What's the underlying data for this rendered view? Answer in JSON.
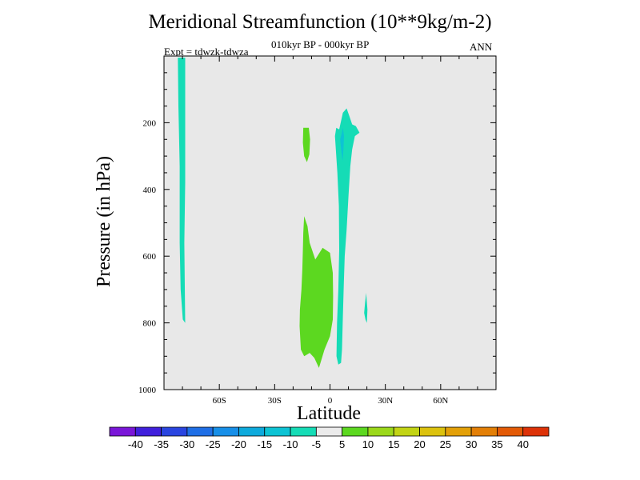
{
  "chart_data": {
    "type": "contour",
    "title": "Meridional Streamfunction (10**9kg/m-2)",
    "subtitle": "010kyr BP - 000kyr BP",
    "left_label": "Expt = tdwzk-tdwza",
    "right_label": "ANN",
    "xlabel": "Latitude",
    "ylabel": "Pressure (in hPa)",
    "xlim": [
      -90,
      90
    ],
    "ylim": [
      1000,
      0
    ],
    "x_ticks": [
      {
        "value": -60,
        "label": "60S"
      },
      {
        "value": -30,
        "label": "30S"
      },
      {
        "value": 0,
        "label": "0"
      },
      {
        "value": 30,
        "label": "30N"
      },
      {
        "value": 60,
        "label": "60N"
      }
    ],
    "y_ticks": [
      {
        "value": 200,
        "label": "200"
      },
      {
        "value": 400,
        "label": "400"
      },
      {
        "value": 600,
        "label": "600"
      },
      {
        "value": 800,
        "label": "800"
      },
      {
        "value": 1000,
        "label": "1000"
      }
    ],
    "background_color": "#e8e8e8",
    "colorbar": {
      "levels": [
        -40,
        -35,
        -30,
        -25,
        -20,
        -15,
        -10,
        -5,
        5,
        10,
        15,
        20,
        25,
        30,
        35,
        40
      ],
      "level_labels": [
        "-40",
        "-35",
        "-30",
        "-25",
        "-20",
        "-15",
        "-10",
        "-5",
        "5",
        "10",
        "15",
        "20",
        "25",
        "30",
        "35",
        "40"
      ],
      "colors": [
        "#7a16d8",
        "#4020dc",
        "#2a45e0",
        "#1f6fe6",
        "#178fe8",
        "#0eaadc",
        "#0dc3d4",
        "#15dcb6",
        "#ebebeb",
        "#5cd820",
        "#9bd81a",
        "#c2d414",
        "#dcc20e",
        "#e3a008",
        "#e37f06",
        "#e35a06",
        "#dd3208"
      ]
    },
    "regions": [
      {
        "name": "southern-high-latitude-band",
        "range": "-10 to -5",
        "color": "#15dcb6",
        "outline": [
          [
            -82.5,
            5
          ],
          [
            -78.5,
            5
          ],
          [
            -78.5,
            170
          ],
          [
            -78.5,
            380
          ],
          [
            -79,
            560
          ],
          [
            -78.5,
            800
          ],
          [
            -79.8,
            790
          ],
          [
            -81,
            700
          ],
          [
            -81.5,
            560
          ],
          [
            -81.5,
            330
          ],
          [
            -81.8,
            250
          ],
          [
            -82.2,
            150
          ]
        ]
      },
      {
        "name": "upper-tropical-positive-cell",
        "range": "5 to 10",
        "color": "#5cd820",
        "outline": [
          [
            -14.5,
            215
          ],
          [
            -11.5,
            215
          ],
          [
            -10.8,
            250
          ],
          [
            -11.2,
            295
          ],
          [
            -12.5,
            318
          ],
          [
            -14,
            300
          ],
          [
            -14.7,
            260
          ]
        ]
      },
      {
        "name": "lower-tropical-positive-cell",
        "range": "5 to 10",
        "color": "#5cd820",
        "outline": [
          [
            -14,
            480
          ],
          [
            -12.2,
            510
          ],
          [
            -11,
            560
          ],
          [
            -8,
            610
          ],
          [
            -4,
            575
          ],
          [
            0,
            590
          ],
          [
            1.5,
            650
          ],
          [
            1.7,
            720
          ],
          [
            1.5,
            790
          ],
          [
            0,
            840
          ],
          [
            -3,
            880
          ],
          [
            -6,
            935
          ],
          [
            -8.5,
            905
          ],
          [
            -11,
            890
          ],
          [
            -14,
            900
          ],
          [
            -15.8,
            880
          ],
          [
            -16.5,
            810
          ],
          [
            -16.3,
            760
          ],
          [
            -15.5,
            700
          ],
          [
            -15,
            640
          ],
          [
            -14.7,
            580
          ],
          [
            -14.5,
            530
          ]
        ]
      },
      {
        "name": "northern-subtropical-band",
        "range": "-10 to -5",
        "color": "#15dcb6",
        "outline": [
          [
            5,
            220
          ],
          [
            7,
            170
          ],
          [
            9,
            157
          ],
          [
            10.5,
            180
          ],
          [
            12,
            205
          ],
          [
            14,
            210
          ],
          [
            16,
            230
          ],
          [
            13.5,
            240
          ],
          [
            12,
            280
          ],
          [
            11,
            330
          ],
          [
            10,
            420
          ],
          [
            9,
            520
          ],
          [
            8,
            600
          ],
          [
            7.5,
            680
          ],
          [
            7,
            780
          ],
          [
            6.5,
            880
          ],
          [
            6,
            920
          ],
          [
            4.5,
            925
          ],
          [
            3.5,
            900
          ],
          [
            3.8,
            800
          ],
          [
            4.5,
            700
          ],
          [
            5,
            580
          ],
          [
            4.8,
            450
          ],
          [
            4,
            350
          ],
          [
            2.7,
            240
          ],
          [
            3.4,
            215
          ]
        ]
      },
      {
        "name": "northern-subtropical-core",
        "range": "-15 to -10",
        "color": "#0dc3d4",
        "outline": [
          [
            5.5,
            250
          ],
          [
            6.2,
            235
          ],
          [
            7,
            215
          ],
          [
            7.6,
            240
          ],
          [
            7.3,
            280
          ],
          [
            6.8,
            315
          ],
          [
            6.2,
            290
          ]
        ]
      },
      {
        "name": "northern-low-level-spot",
        "range": "-10 to -5",
        "color": "#15dcb6",
        "outline": [
          [
            19,
            740
          ],
          [
            19.6,
            710
          ],
          [
            20.3,
            760
          ],
          [
            20,
            800
          ],
          [
            19.2,
            790
          ],
          [
            18.5,
            770
          ]
        ]
      }
    ]
  }
}
